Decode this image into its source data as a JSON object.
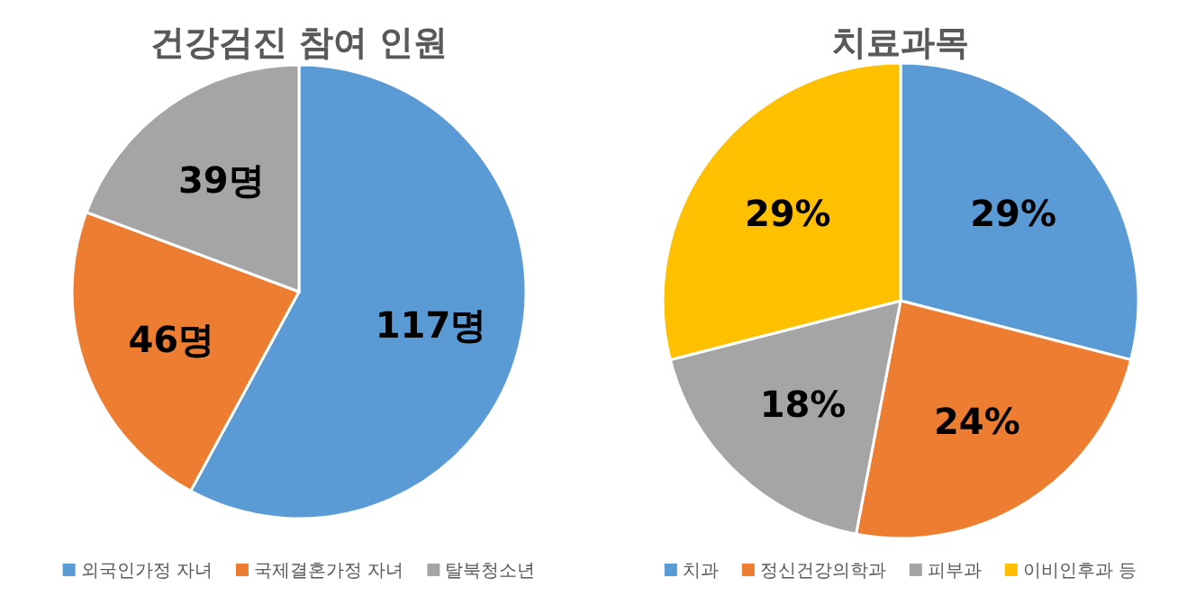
{
  "chart_data": [
    {
      "type": "pie",
      "title": "건강검진 참여 인원",
      "categories": [
        "외국인가정 자녀",
        "국제결혼가정 자녀",
        "탈북청소년"
      ],
      "values": [
        117,
        46,
        39
      ],
      "colors": [
        "#5b9bd5",
        "#ed7d31",
        "#a5a5a5"
      ],
      "value_labels": [
        "117명",
        "46명",
        "39명"
      ],
      "legend": "bottom"
    },
    {
      "type": "pie",
      "title": "치료과목",
      "categories": [
        "치과",
        "정신건강의학과",
        "피부과",
        "이비인후과 등"
      ],
      "values": [
        29,
        24,
        18,
        29
      ],
      "colors": [
        "#5b9bd5",
        "#ed7d31",
        "#a5a5a5",
        "#ffc000"
      ],
      "value_labels": [
        "29%",
        "24%",
        "18%",
        "29%"
      ],
      "legend": "bottom"
    }
  ]
}
